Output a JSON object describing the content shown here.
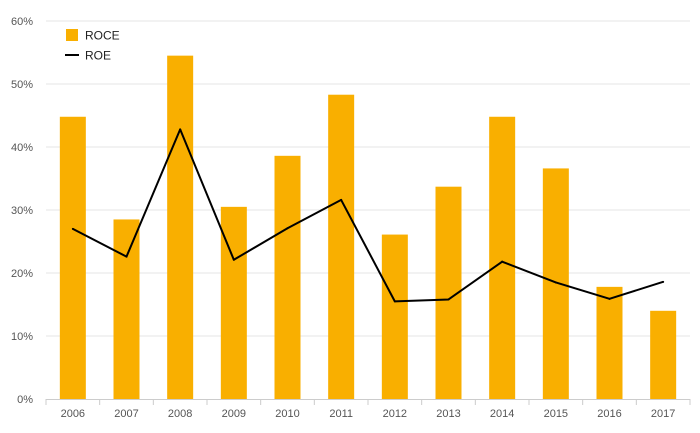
{
  "chart_data": {
    "type": "bar",
    "title": "",
    "xlabel": "",
    "ylabel": "",
    "categories": [
      "2006",
      "2007",
      "2008",
      "2009",
      "2010",
      "2011",
      "2012",
      "2013",
      "2014",
      "2015",
      "2016",
      "2017"
    ],
    "ylim": [
      0,
      60
    ],
    "y_ticks": [
      "0%",
      "10%",
      "20%",
      "30%",
      "40%",
      "50%",
      "60%"
    ],
    "y_tick_values": [
      0,
      10,
      20,
      30,
      40,
      50,
      60
    ],
    "grid": true,
    "legend_position": "top-left",
    "series": [
      {
        "name": "ROCE",
        "type": "bar",
        "color": "#F9AF00",
        "values": [
          44.8,
          28.5,
          54.5,
          30.5,
          38.6,
          48.3,
          26.1,
          33.7,
          44.8,
          36.6,
          17.8,
          14.0
        ]
      },
      {
        "name": "ROE",
        "type": "line",
        "color": "#000000",
        "values": [
          27.0,
          22.6,
          42.8,
          22.1,
          27.1,
          31.6,
          15.5,
          15.8,
          21.8,
          18.5,
          15.9,
          18.6
        ]
      }
    ]
  },
  "colors": {
    "grid": "#e6e6e6",
    "axis": "#cccccc"
  }
}
